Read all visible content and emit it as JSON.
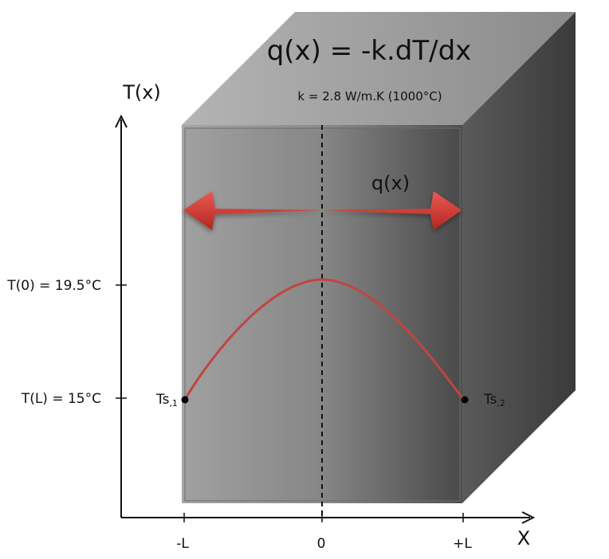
{
  "diagram": {
    "equation": "q(x) = -k.dT/dx",
    "conductivity_note": "k = 2.8 W/m.K  (1000°C)",
    "flux_label": "q(x)",
    "y_axis_label": "T(x)",
    "x_axis_label": "X",
    "y_ticks": {
      "center_temp": "T(0) = 19.5°C",
      "surface_temp": "T(L) = 15°C"
    },
    "x_ticks": {
      "left": "-L",
      "center": "0",
      "right": "+L"
    },
    "surface_labels": {
      "left_main": "Ts",
      "left_sub": ",1",
      "right_main": "Ts",
      "right_sub": ",2"
    },
    "colors": {
      "arrow": "#d13a35",
      "curve": "#c0463f",
      "wall_light": "#a8a8a8",
      "wall_dark": "#4a4a4a"
    }
  }
}
